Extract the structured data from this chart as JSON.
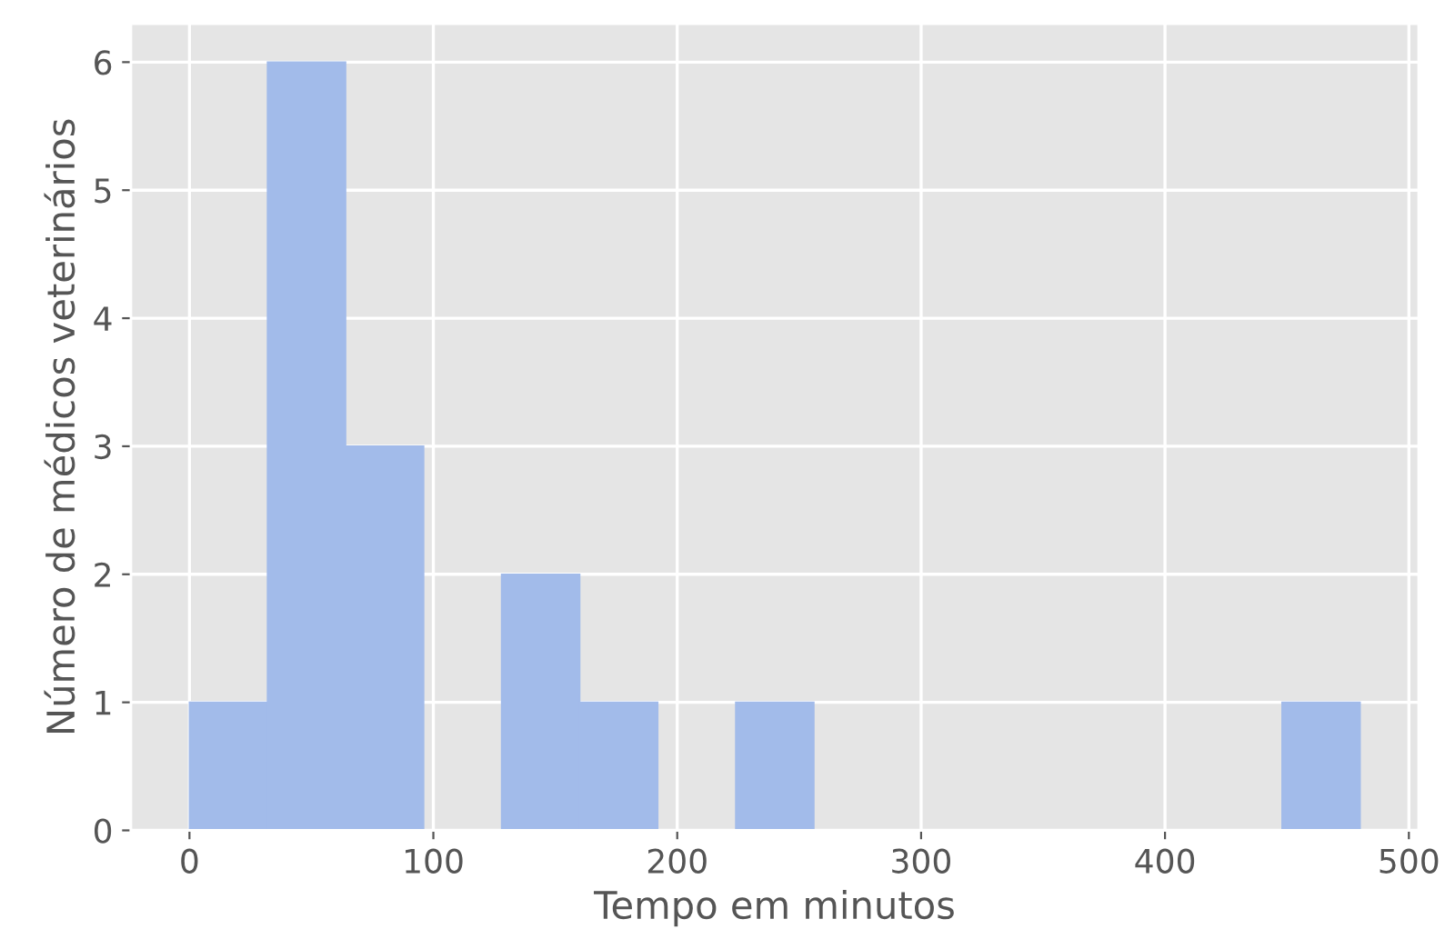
{
  "chart_data": {
    "type": "histogram",
    "xlabel": "Tempo em minutos",
    "ylabel": "Número de médicos veterinários",
    "bins": [
      0,
      32,
      64,
      96,
      128,
      160,
      192,
      224,
      256,
      288,
      320,
      352,
      384,
      416,
      448,
      480
    ],
    "values": [
      1,
      6,
      3,
      0,
      2,
      1,
      0,
      1,
      0,
      0,
      0,
      0,
      0,
      0,
      1
    ],
    "color": "#a2bbea",
    "xlim": [
      -24,
      504
    ],
    "xticks": [
      0,
      100,
      200,
      300,
      400,
      500
    ],
    "ylim": [
      0,
      6.3
    ],
    "yticks": [
      0,
      1,
      2,
      3,
      4,
      5,
      6
    ],
    "grid": true
  }
}
